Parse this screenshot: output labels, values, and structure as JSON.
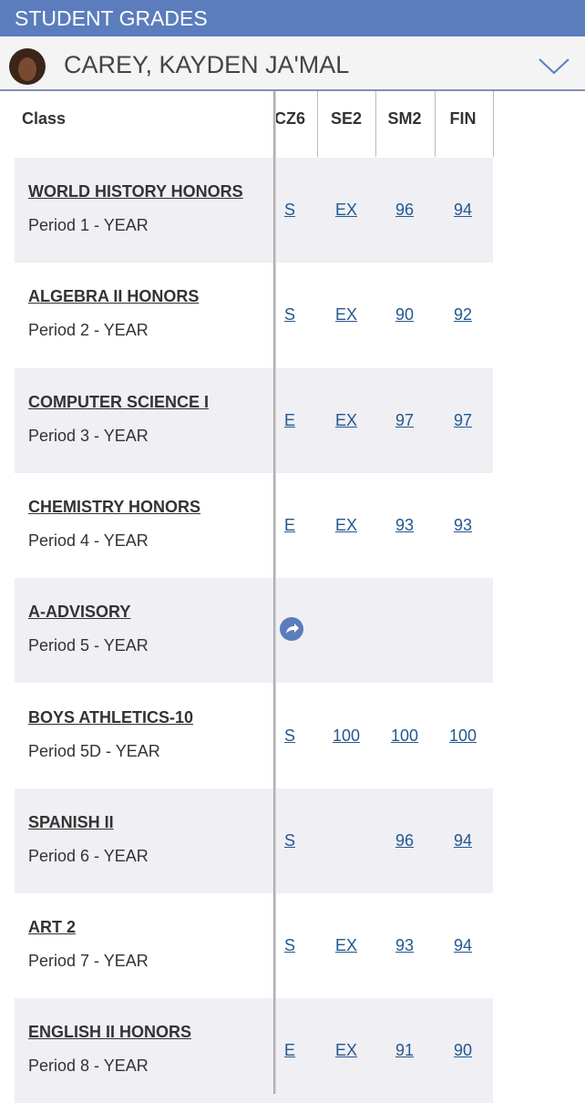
{
  "header": {
    "title": "STUDENT GRADES"
  },
  "student": {
    "name": "CAREY, KAYDEN JA'MAL"
  },
  "table": {
    "columns": [
      "Class",
      "CZ6",
      "SE2",
      "SM2",
      "FIN"
    ],
    "rows": [
      {
        "class": "WORLD HISTORY HONORS",
        "period": "Period 1 - YEAR",
        "grades": [
          "S",
          "EX",
          96,
          94
        ]
      },
      {
        "class": "ALGEBRA II HONORS",
        "period": "Period 2 - YEAR",
        "grades": [
          "S",
          "EX",
          90,
          92
        ]
      },
      {
        "class": "COMPUTER SCIENCE I",
        "period": "Period 3 - YEAR",
        "grades": [
          "E",
          "EX",
          97,
          97
        ]
      },
      {
        "class": "CHEMISTRY HONORS",
        "period": "Period 4 - YEAR",
        "grades": [
          "E",
          "EX",
          93,
          93
        ]
      },
      {
        "class": "A-ADVISORY",
        "period": "Period 5 - YEAR",
        "grades": [
          null,
          null,
          null,
          null
        ]
      },
      {
        "class": "BOYS ATHLETICS-10",
        "period": "Period 5D - YEAR",
        "grades": [
          "S",
          100,
          100,
          100
        ]
      },
      {
        "class": "SPANISH II",
        "period": "Period 6 - YEAR",
        "grades": [
          "S",
          null,
          96,
          94
        ]
      },
      {
        "class": "ART 2",
        "period": "Period 7 - YEAR",
        "grades": [
          "S",
          "EX",
          93,
          94
        ]
      },
      {
        "class": "ENGLISH II HONORS",
        "period": "Period 8 - YEAR",
        "grades": [
          "E",
          "EX",
          91,
          90
        ]
      }
    ]
  }
}
